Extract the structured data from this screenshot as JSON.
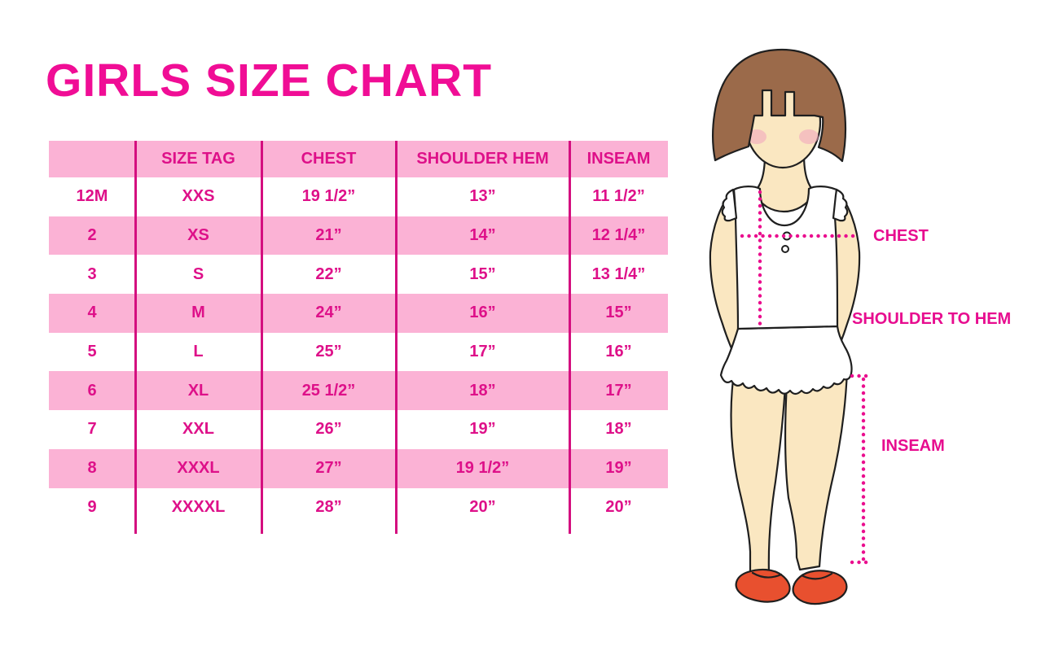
{
  "title": "GIRLS SIZE CHART",
  "chart_data": {
    "type": "table",
    "title": "GIRLS SIZE CHART",
    "columns": [
      "",
      "SIZE TAG",
      "CHEST",
      "SHOULDER HEM",
      "INSEAM"
    ],
    "rows": [
      [
        "12M",
        "XXS",
        "19 1/2”",
        "13”",
        "11 1/2”"
      ],
      [
        "2",
        "XS",
        "21”",
        "14”",
        "12 1/4”"
      ],
      [
        "3",
        "S",
        "22”",
        "15”",
        "13 1/4”"
      ],
      [
        "4",
        "M",
        "24”",
        "16”",
        "15”"
      ],
      [
        "5",
        "L",
        "25”",
        "17”",
        "16”"
      ],
      [
        "6",
        "XL",
        "25 1/2”",
        "18”",
        "17”"
      ],
      [
        "7",
        "XXL",
        "26”",
        "19”",
        "18”"
      ],
      [
        "8",
        "XXXL",
        "27”",
        "19 1/2”",
        "19”"
      ],
      [
        "9",
        "XXXXL",
        "28”",
        "20”",
        "20”"
      ]
    ],
    "row_shading": [
      "white",
      "pink",
      "white",
      "pink",
      "white",
      "pink",
      "white",
      "pink",
      "white"
    ],
    "header_shading": "pink"
  },
  "figure_labels": {
    "chest": "CHEST",
    "shoulder_to_hem": "SHOULDER TO HEM",
    "inseam": "INSEAM"
  },
  "colors": {
    "title_magenta": "#F00D95",
    "table_text_magenta": "#DE1089",
    "divider_magenta": "#D40E7F",
    "row_pink": "#FBB2D5",
    "dotted_line_pink": "#EA0E8E",
    "hair_brown": "#9B6A4A",
    "skin": "#FAE7C1",
    "blush_pink": "#F2A8BE",
    "shoe_red": "#E8502F",
    "outline_black": "#1F1F1F",
    "background": "#FFFFFF"
  }
}
